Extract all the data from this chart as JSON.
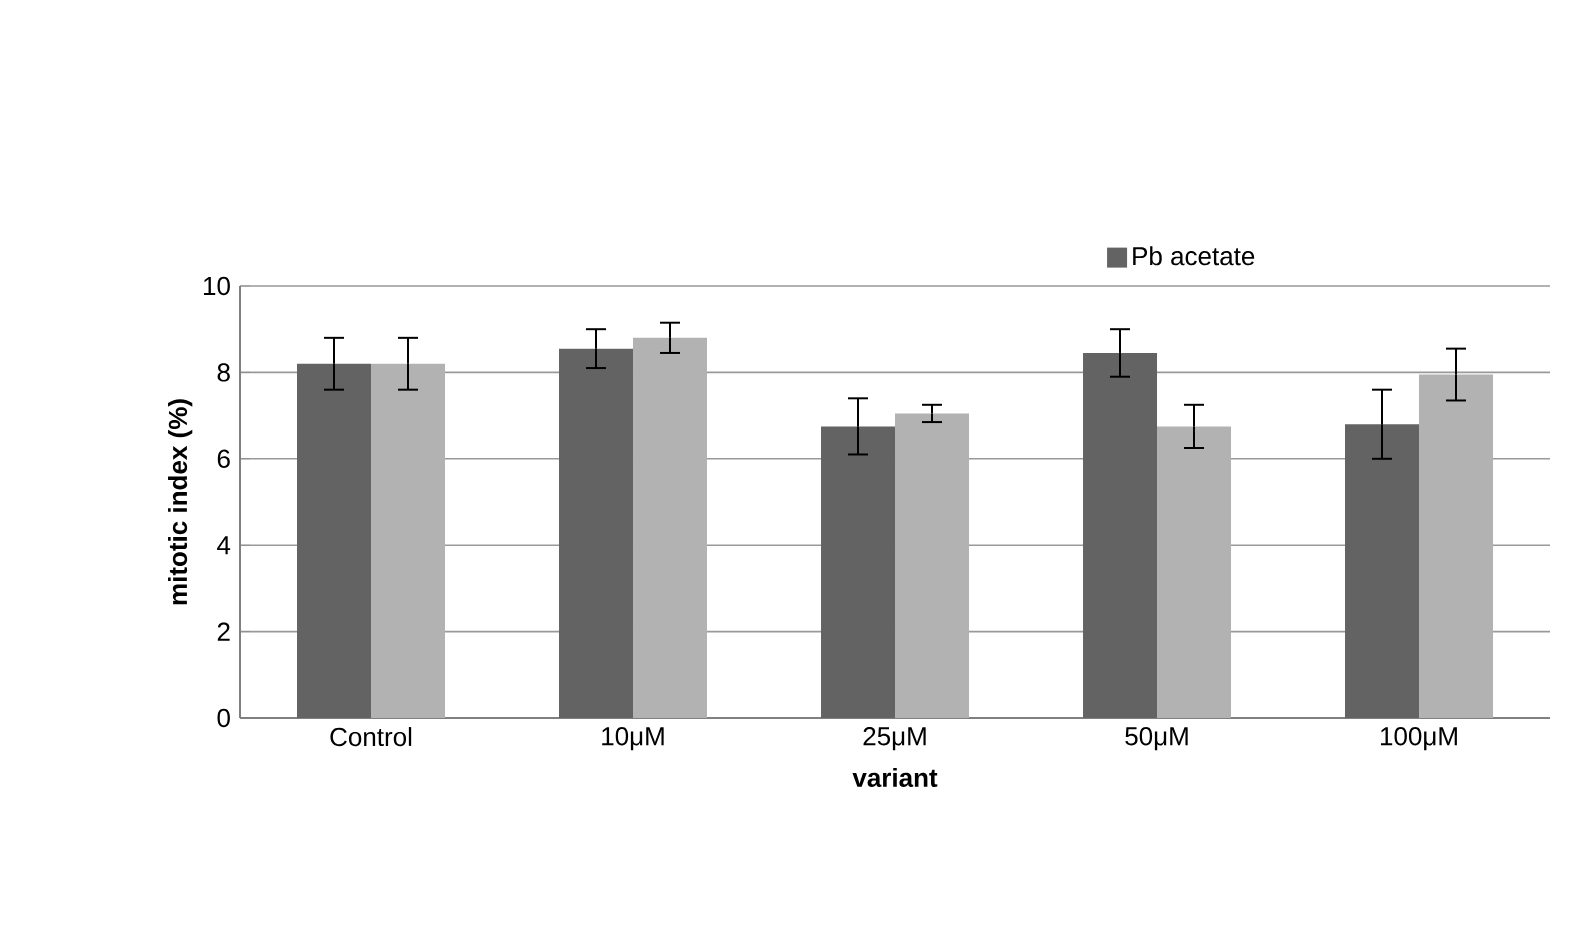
{
  "chart_data": {
    "type": "bar",
    "xlabel": "variant",
    "ylabel": "mitotic index (%)",
    "categories": [
      "Control",
      "10μM",
      "25μM",
      "50μM",
      "100μM"
    ],
    "series": [
      {
        "name": "Pb acetate",
        "color": "#636363",
        "values": [
          8.2,
          8.55,
          6.75,
          8.45,
          6.8
        ],
        "errors": [
          0.6,
          0.45,
          0.65,
          0.55,
          0.8
        ]
      },
      {
        "color": "#b2b2b2",
        "values": [
          8.2,
          8.8,
          7.05,
          6.75,
          7.95
        ],
        "errors": [
          0.6,
          0.35,
          0.2,
          0.5,
          0.6
        ]
      }
    ],
    "ylim": [
      0,
      10
    ],
    "yticks": [
      0,
      2,
      4,
      6,
      8,
      10
    ],
    "grid": "y",
    "legend": "top"
  }
}
